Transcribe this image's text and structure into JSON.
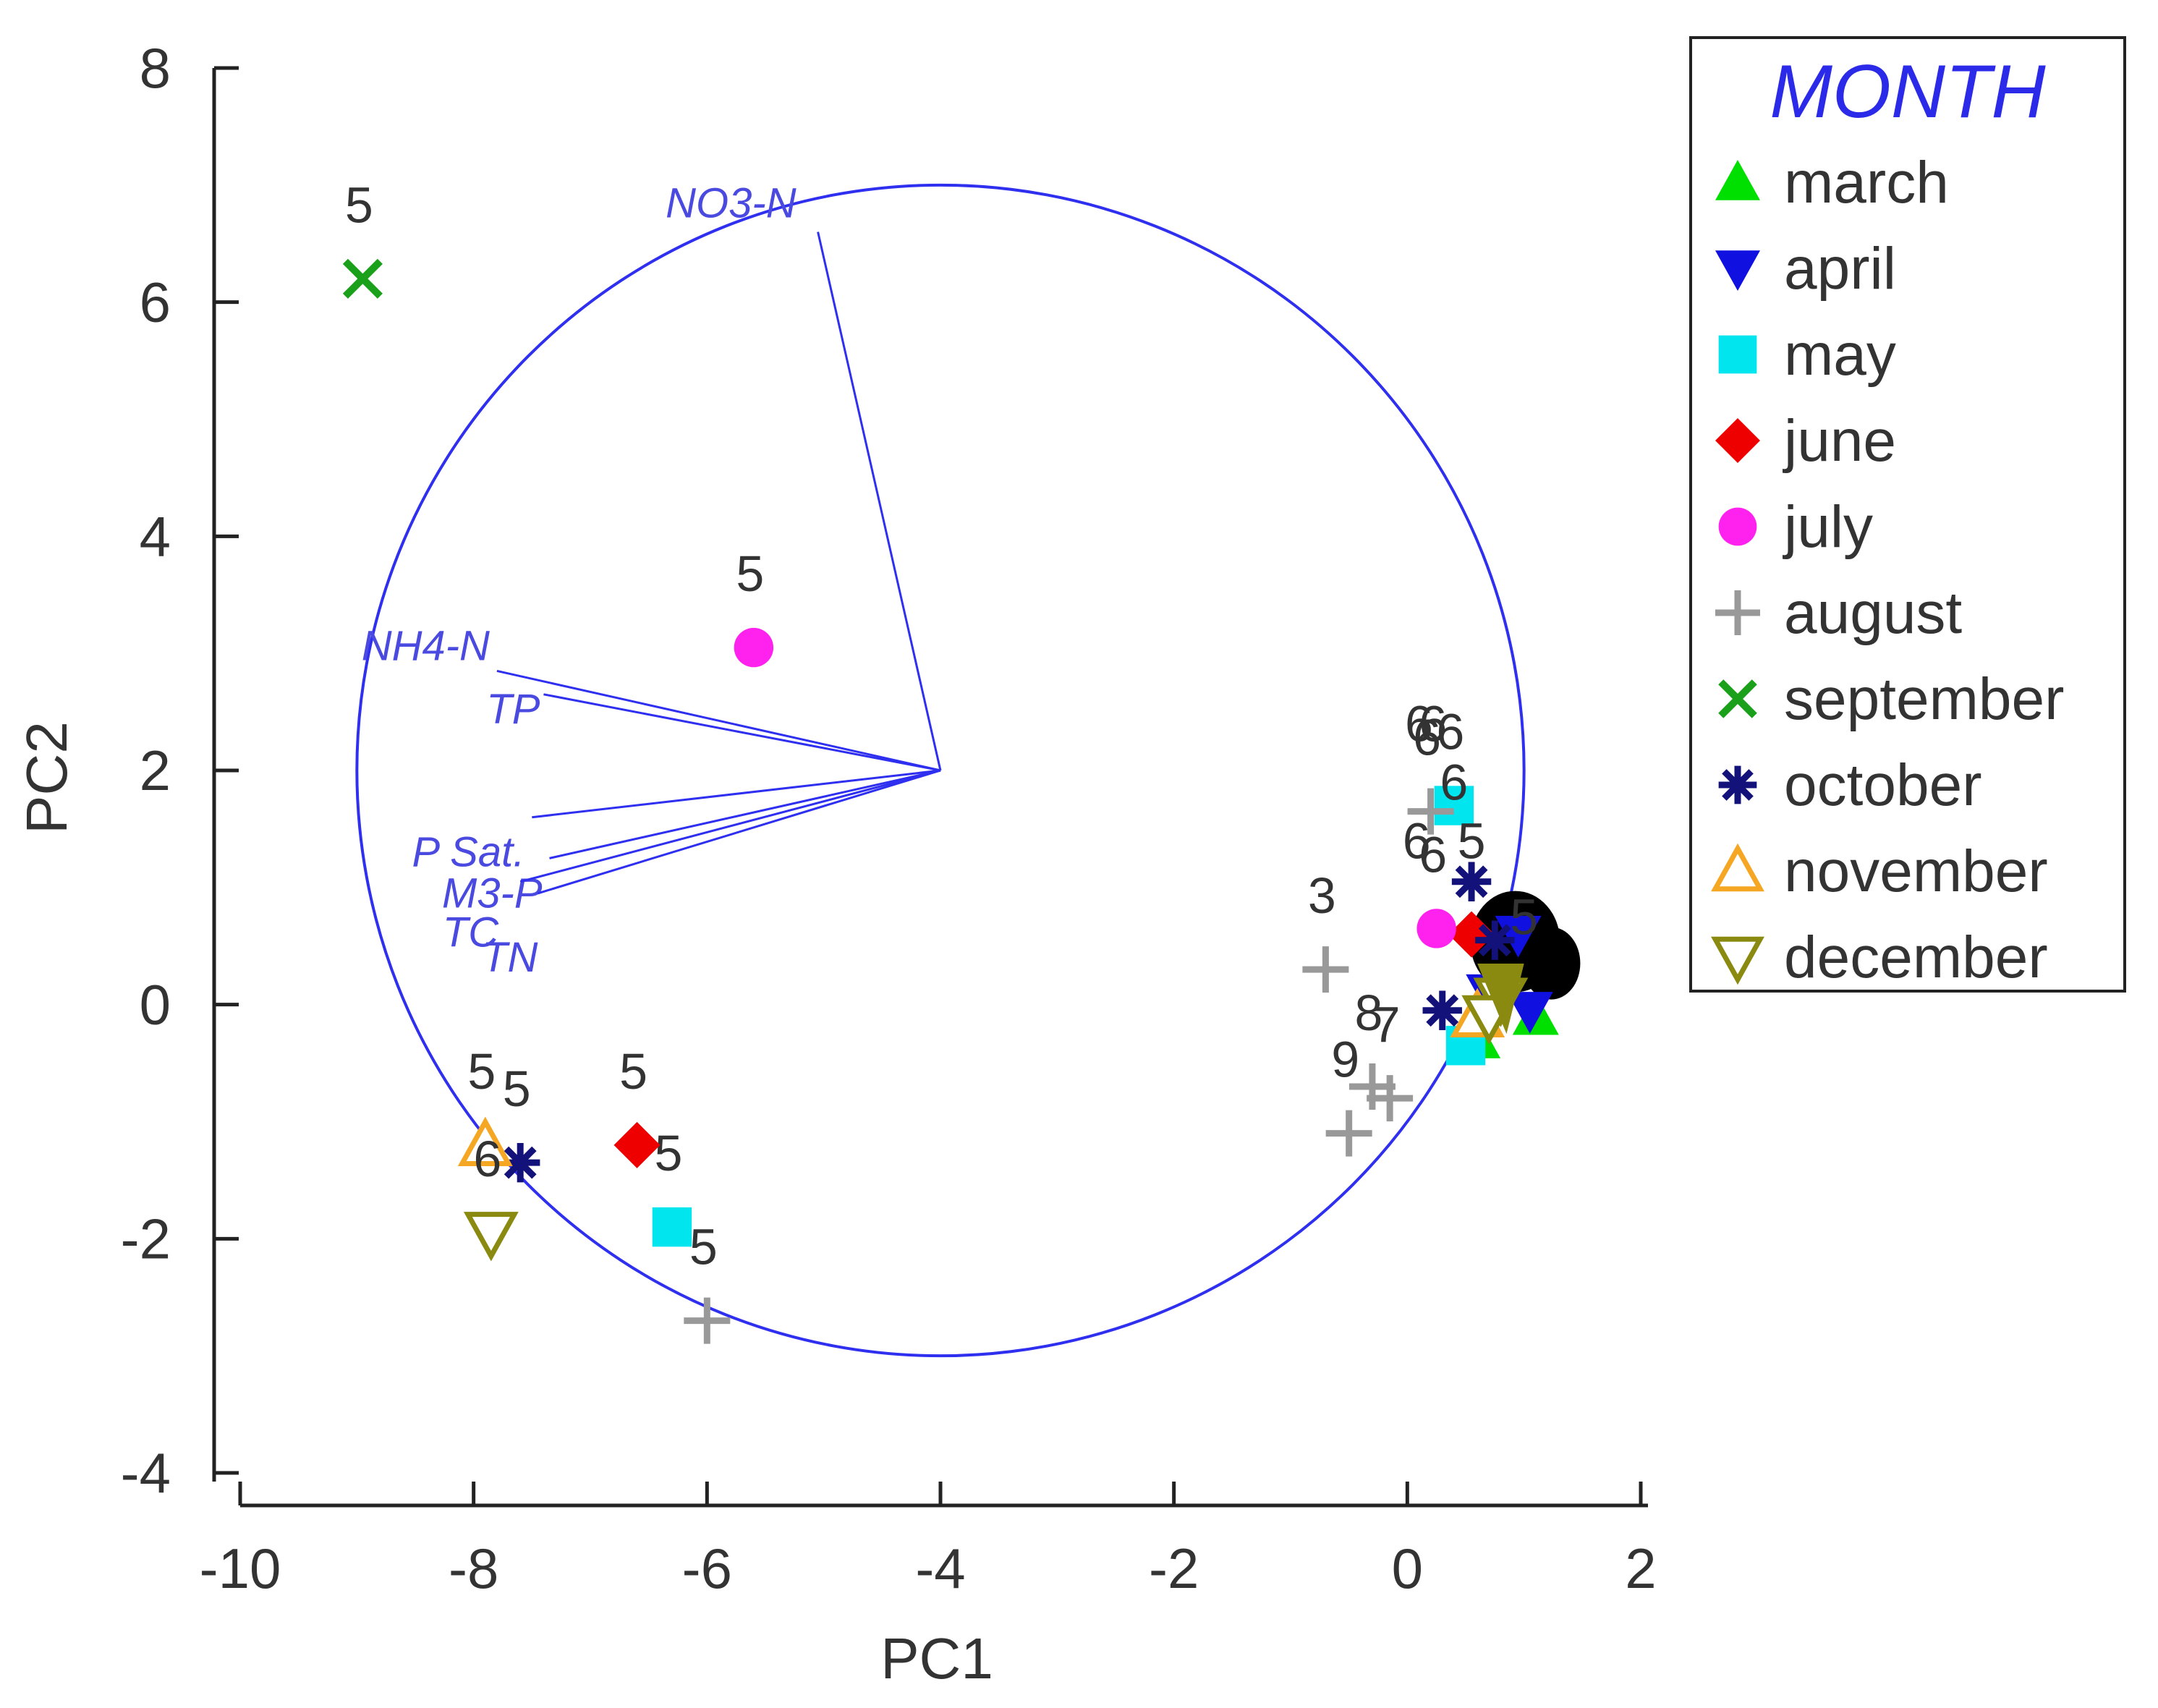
{
  "chart_data": {
    "type": "scatter",
    "title": "",
    "xlabel": "PC1",
    "ylabel": "PC2",
    "xlim": [
      -10,
      2
    ],
    "ylim": [
      -4,
      8
    ],
    "xticks": [
      "-10",
      "-8",
      "-6",
      "-4",
      "-2",
      "0",
      "2"
    ],
    "yticks": [
      "-4",
      "-2",
      "0",
      "2",
      "4",
      "6",
      "8"
    ],
    "legend_title": "MONTH",
    "legend_position": "right",
    "series": [
      {
        "name": "march",
        "marker": "triangle-up",
        "color": "#00e000",
        "points": [
          [
            0.6,
            -0.3,
            ""
          ],
          [
            1.1,
            -0.1,
            ""
          ]
        ]
      },
      {
        "name": "april",
        "marker": "triangle-down",
        "color": "#1010e0",
        "points": [
          [
            0.7,
            0.1,
            ""
          ],
          [
            1.05,
            -0.05,
            ""
          ],
          [
            0.95,
            0.6,
            ""
          ]
        ]
      },
      {
        "name": "may",
        "marker": "square",
        "color": "#00e5ee",
        "points": [
          [
            -6.3,
            -1.9,
            "5"
          ],
          [
            0.4,
            1.7,
            "6"
          ],
          [
            0.5,
            -0.35,
            ""
          ]
        ]
      },
      {
        "name": "june",
        "marker": "diamond",
        "color": "#ee0000",
        "points": [
          [
            -6.6,
            -1.2,
            "5"
          ],
          [
            0.55,
            0.6,
            ""
          ]
        ]
      },
      {
        "name": "july",
        "marker": "circle",
        "color": "#ff22ee",
        "points": [
          [
            -5.6,
            3.05,
            "5"
          ],
          [
            0.25,
            0.65,
            "6"
          ]
        ]
      },
      {
        "name": "august",
        "marker": "plus",
        "color": "#999999",
        "points": [
          [
            -6.0,
            -2.7,
            "5"
          ],
          [
            -0.7,
            0.3,
            "3"
          ],
          [
            -0.5,
            -1.1,
            "9"
          ],
          [
            -0.3,
            -0.7,
            "8"
          ],
          [
            -0.15,
            -0.8,
            "7"
          ],
          [
            0.2,
            1.65,
            "6"
          ]
        ]
      },
      {
        "name": "september",
        "marker": "x",
        "color": "#1aa01a",
        "points": [
          [
            -8.95,
            6.2,
            "5"
          ]
        ]
      },
      {
        "name": "october",
        "marker": "asterisk",
        "color": "#12127a",
        "points": [
          [
            -7.6,
            -1.35,
            "5"
          ],
          [
            0.55,
            1.05,
            ""
          ],
          [
            0.3,
            -0.05,
            ""
          ],
          [
            0.75,
            0.55,
            ""
          ]
        ]
      },
      {
        "name": "november",
        "marker": "triangle-up-open",
        "color": "#f5a623",
        "points": [
          [
            -7.9,
            -1.2,
            "5"
          ],
          [
            0.6,
            -0.1,
            ""
          ]
        ]
      },
      {
        "name": "december",
        "marker": "triangle-down-open",
        "color": "#8a8a10",
        "points": [
          [
            -7.85,
            -1.95,
            "6"
          ],
          [
            0.8,
            0.05,
            ""
          ],
          [
            0.7,
            -0.1,
            ""
          ]
        ]
      }
    ],
    "cluster_labels": [
      {
        "text": "6",
        "x": 0.1,
        "y": 2.25
      },
      {
        "text": "6",
        "x": 0.22,
        "y": 2.25
      },
      {
        "text": "6",
        "x": 0.4,
        "y": 1.75
      },
      {
        "text": "6",
        "x": 0.08,
        "y": 1.25
      },
      {
        "text": "5",
        "x": 0.55,
        "y": 1.25
      },
      {
        "text": "5",
        "x": 1.0,
        "y": 0.6
      }
    ],
    "cluster_dense": {
      "x": 0.8,
      "y": 0.6,
      "color": "#000000"
    },
    "loading_circle": {
      "center": [
        -4.0,
        2.0
      ],
      "radius": 5.0
    },
    "vectors": [
      {
        "name": "NO3-N",
        "x": -5.05,
        "y": 6.6
      },
      {
        "name": "NH4-N",
        "x": -7.8,
        "y": 2.85
      },
      {
        "name": "TP",
        "x": -7.4,
        "y": 2.65
      },
      {
        "name": "P Sat.",
        "x": -7.5,
        "y": 1.6
      },
      {
        "name": "M3-P",
        "x": -7.35,
        "y": 1.25
      },
      {
        "name": "TC",
        "x": -7.6,
        "y": 1.05
      },
      {
        "name": "TN",
        "x": -7.45,
        "y": 0.95
      }
    ]
  }
}
